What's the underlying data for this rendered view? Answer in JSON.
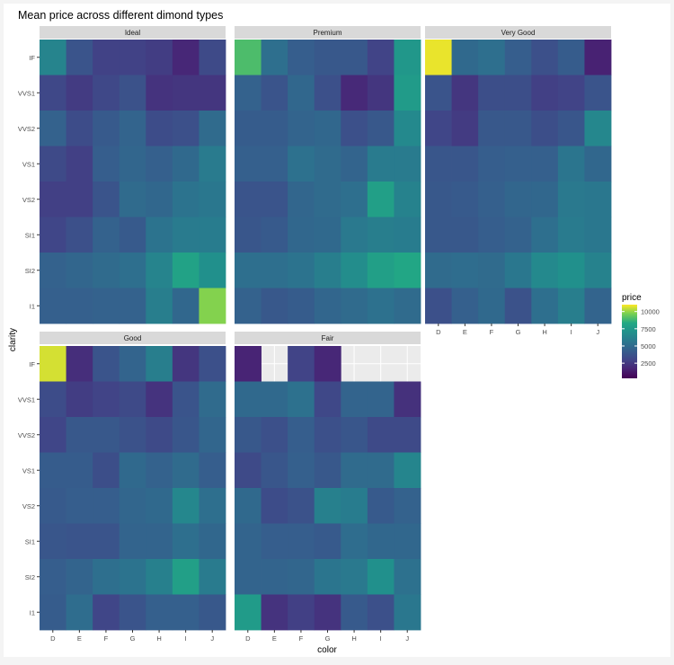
{
  "chart_data": {
    "type": "heatmap",
    "title": "Mean price across different dimond types",
    "xlabel": "color",
    "ylabel": "clarity",
    "x_categories": [
      "D",
      "E",
      "F",
      "G",
      "H",
      "I",
      "J"
    ],
    "y_categories": [
      "IF",
      "VVS1",
      "VVS2",
      "VS1",
      "VS2",
      "SI1",
      "SI2",
      "I1"
    ],
    "legend": {
      "title": "price",
      "ticks": [
        2500,
        5000,
        7500,
        10000
      ],
      "range": [
        300,
        11000
      ],
      "placement": "right"
    },
    "colors": {
      "panel_background": "#ebebeb",
      "strip_background": "#d9d9d9",
      "plot_background": "#ffffff"
    },
    "facets": [
      {
        "name": "Ideal",
        "values": [
          [
            6300,
            3800,
            2900,
            2900,
            2700,
            1800,
            3300
          ],
          [
            3200,
            2600,
            3200,
            3700,
            2300,
            2400,
            2400
          ],
          [
            4500,
            3400,
            4100,
            4600,
            3400,
            3600,
            5000
          ],
          [
            3300,
            2800,
            4300,
            4700,
            4400,
            4900,
            5800
          ],
          [
            2800,
            2800,
            3800,
            5000,
            4800,
            5400,
            5600
          ],
          [
            3100,
            3600,
            4500,
            4100,
            5400,
            5800,
            5900
          ],
          [
            4500,
            4700,
            5000,
            5200,
            6300,
            8000,
            7000
          ],
          [
            4400,
            4400,
            4500,
            4500,
            6000,
            4800,
            9800
          ]
        ]
      },
      {
        "name": "Premium",
        "values": [
          [
            9000,
            5200,
            4300,
            4000,
            4000,
            3000,
            7400
          ],
          [
            4500,
            3800,
            4800,
            3600,
            1900,
            2400,
            7600
          ],
          [
            4200,
            4200,
            4600,
            4800,
            3600,
            4000,
            6600
          ],
          [
            4400,
            4400,
            5300,
            5000,
            4600,
            5800,
            5800
          ],
          [
            3800,
            3800,
            4700,
            5000,
            5200,
            7800,
            6200
          ],
          [
            3900,
            4100,
            4800,
            4900,
            5700,
            6000,
            5900
          ],
          [
            5200,
            5200,
            5400,
            6000,
            6800,
            7800,
            8200
          ],
          [
            4500,
            4000,
            4200,
            4700,
            5000,
            5300,
            5000
          ]
        ]
      },
      {
        "name": "Very Good",
        "values": [
          [
            10800,
            4900,
            5200,
            4300,
            3600,
            4200,
            1600
          ],
          [
            3800,
            2400,
            3500,
            3500,
            2800,
            3000,
            3800
          ],
          [
            3100,
            2600,
            4000,
            4000,
            3500,
            3900,
            6500
          ],
          [
            3900,
            3900,
            4300,
            4400,
            4400,
            5500,
            4800
          ],
          [
            4000,
            4100,
            4400,
            4700,
            4800,
            5700,
            5600
          ],
          [
            4000,
            4000,
            4300,
            4500,
            5200,
            5800,
            5600
          ],
          [
            5000,
            5100,
            5000,
            5600,
            6600,
            7000,
            6200
          ],
          [
            3600,
            4400,
            4900,
            3700,
            5200,
            6000,
            4600
          ]
        ]
      },
      {
        "name": "Good",
        "values": [
          [
            10600,
            2100,
            3800,
            4600,
            6000,
            2400,
            3600
          ],
          [
            3400,
            2700,
            3000,
            3300,
            2300,
            3800,
            5000
          ],
          [
            3100,
            4000,
            4000,
            3700,
            3300,
            3900,
            4700
          ],
          [
            4200,
            4200,
            3500,
            4900,
            4500,
            5000,
            4300
          ],
          [
            4100,
            4300,
            4300,
            4700,
            4900,
            6500,
            5200
          ],
          [
            3900,
            3800,
            3800,
            4600,
            4600,
            5200,
            4800
          ],
          [
            4300,
            4600,
            5200,
            5400,
            6100,
            7800,
            5800
          ],
          [
            4200,
            5100,
            3100,
            3800,
            4400,
            4400,
            4000
          ]
        ]
      },
      {
        "name": "Fair",
        "values": [
          [
            1700,
            null,
            3000,
            1800,
            null,
            null,
            null
          ],
          [
            4900,
            4900,
            5300,
            3200,
            4600,
            4600,
            2200
          ],
          [
            4000,
            3600,
            4300,
            3600,
            3900,
            3300,
            3300
          ],
          [
            3300,
            3900,
            4400,
            4000,
            5000,
            5000,
            6400
          ],
          [
            4900,
            3400,
            3700,
            6100,
            5900,
            4100,
            4500
          ],
          [
            4600,
            4300,
            4300,
            4100,
            5100,
            4800,
            4800
          ],
          [
            4600,
            4600,
            4700,
            5500,
            5700,
            7000,
            5300
          ],
          [
            7600,
            2300,
            2800,
            2300,
            4100,
            3600,
            5600
          ]
        ]
      }
    ]
  }
}
